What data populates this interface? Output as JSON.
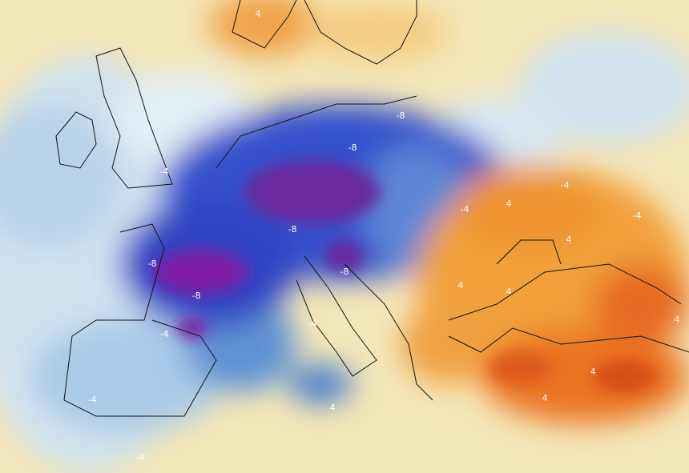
{
  "contour_labels": [
    "4",
    "-8",
    "-8",
    "-8",
    "-4",
    "-4",
    "4",
    "-4",
    "-8",
    "-8",
    "-4",
    "-8",
    "-4",
    "4",
    "4",
    "4",
    "-4",
    "-4",
    "4",
    "4",
    "4",
    "-4",
    "4"
  ]
}
